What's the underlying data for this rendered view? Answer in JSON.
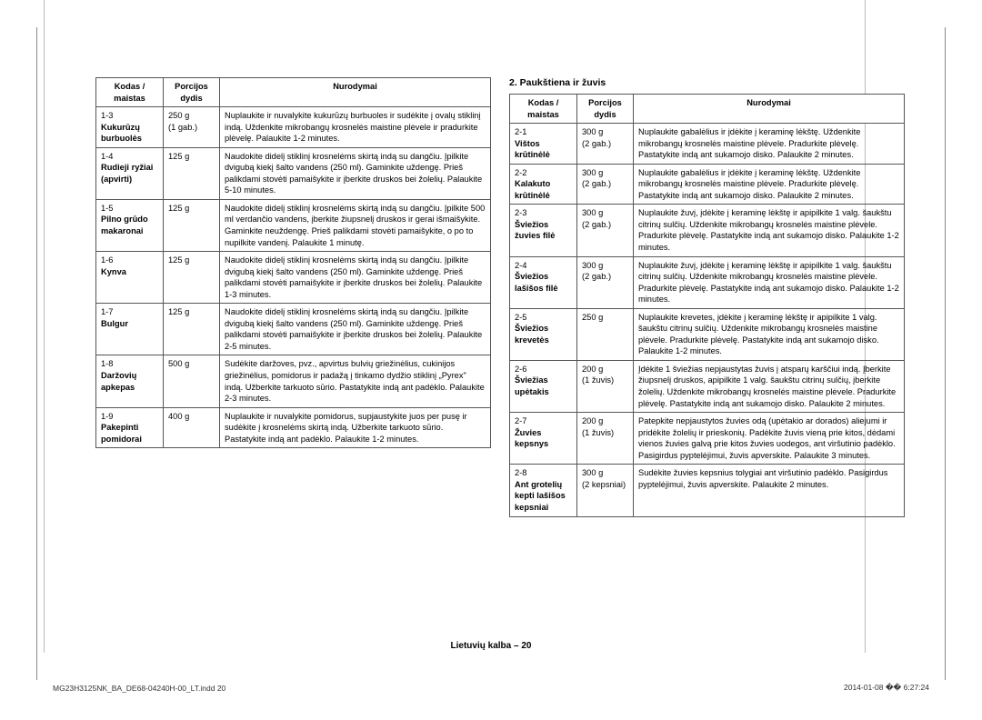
{
  "table1": {
    "headers": [
      "Kodas / maistas",
      "Porcijos dydis",
      "Nurodymai"
    ],
    "rows": [
      {
        "code": "1-3",
        "name": "Kukurūzų burbuolės",
        "portion": "250 g\n(1 gab.)",
        "inst": "Nuplaukite ir nuvalykite kukurūzų burbuoles ir sudėkite į ovalų stiklinį indą. Uždenkite mikrobangų krosnelės maistine plėvele ir pradurkite plėvelę. Palaukite 1-2 minutes."
      },
      {
        "code": "1-4",
        "name": "Rudieji ryžiai (apvirti)",
        "portion": "125 g",
        "inst": "Naudokite didelį stiklinį krosnelėms skirtą indą su dangčiu. Įpilkite dvigubą kiekį šalto vandens (250 ml). Gaminkite uždengę. Prieš palikdami stovėti pamaišykite ir įberkite druskos bei žolelių. Palaukite 5-10 minutes."
      },
      {
        "code": "1-5",
        "name": "Pilno grūdo makaronai",
        "portion": "125 g",
        "inst": "Naudokite didelį stiklinį krosnelėms skirtą indą su dangčiu. Įpilkite 500 ml verdančio vandens, įberkite žiupsnelį druskos ir gerai išmaišykite. Gaminkite neuždengę. Prieš palikdami stovėti pamaišykite, o po to nupilkite vandenį. Palaukite 1 minutę."
      },
      {
        "code": "1-6",
        "name": "Kynva",
        "portion": "125 g",
        "inst": "Naudokite didelį stiklinį krosnelėms skirtą indą su dangčiu. Įpilkite dvigubą kiekį šalto vandens (250 ml). Gaminkite uždengę. Prieš palikdami stovėti pamaišykite ir įberkite druskos bei žolelių. Palaukite 1-3 minutes."
      },
      {
        "code": "1-7",
        "name": "Bulgur",
        "portion": "125 g",
        "inst": "Naudokite didelį stiklinį krosnelėms skirtą indą su dangčiu. Įpilkite dvigubą kiekį šalto vandens (250 ml). Gaminkite uždengę. Prieš palikdami stovėti pamaišykite ir įberkite druskos bei žolelių. Palaukite 2-5 minutes."
      },
      {
        "code": "1-8",
        "name": "Daržovių apkepas",
        "portion": "500 g",
        "inst": "Sudėkite daržoves, pvz., apvirtus bulvių griežinėlius, cukinijos griežinėlius, pomidorus ir padažą į tinkamo dydžio stiklinį „Pyrex\" indą. Užberkite tarkuoto sūrio. Pastatykite indą ant padėklo. Palaukite 2-3 minutes."
      },
      {
        "code": "1-9",
        "name": "Pakepinti pomidorai",
        "portion": "400 g",
        "inst": "Nuplaukite ir nuvalykite pomidorus, supjaustykite juos per pusę ir sudėkite į krosnelėms skirtą indą. Užberkite tarkuoto sūrio. Pastatykite indą ant padėklo. Palaukite 1-2 minutes."
      }
    ]
  },
  "section2_title": "2. Paukštiena ir žuvis",
  "table2": {
    "headers": [
      "Kodas / maistas",
      "Porcijos dydis",
      "Nurodymai"
    ],
    "rows": [
      {
        "code": "2-1",
        "name": "Vištos krūtinėlė",
        "portion": "300 g\n(2 gab.)",
        "inst": "Nuplaukite gabalėlius ir įdėkite į keraminę lėkštę. Uždenkite mikrobangų krosnelės maistine plėvele. Pradurkite plėvelę. Pastatykite indą ant sukamojo disko. Palaukite 2 minutes."
      },
      {
        "code": "2-2",
        "name": "Kalakuto krūtinėlė",
        "portion": "300 g\n(2 gab.)",
        "inst": "Nuplaukite gabalėlius ir įdėkite į keraminę lėkštę. Uždenkite mikrobangų krosnelės maistine plėvele. Pradurkite plėvelę. Pastatykite indą ant sukamojo disko. Palaukite 2 minutes."
      },
      {
        "code": "2-3",
        "name": "Šviežios žuvies filė",
        "portion": "300 g\n(2 gab.)",
        "inst": "Nuplaukite žuvį, įdėkite į keraminę lėkštę ir apipilkite 1 valg. šaukštu citrinų sulčių. Uždenkite mikrobangų krosnelės maistine plėvele. Pradurkite plėvelę. Pastatykite indą ant sukamojo disko. Palaukite 1-2 minutes."
      },
      {
        "code": "2-4",
        "name": "Šviežios lašišos filė",
        "portion": "300 g\n(2 gab.)",
        "inst": "Nuplaukite žuvį, įdėkite į keraminę lėkštę ir apipilkite 1 valg. šaukštu citrinų sulčių. Uždenkite mikrobangų krosnelės maistine plėvele. Pradurkite plėvelę. Pastatykite indą ant sukamojo disko. Palaukite 1-2 minutes."
      },
      {
        "code": "2-5",
        "name": "Šviežios krevetės",
        "portion": "250 g",
        "inst": "Nuplaukite krevetes, įdėkite į keraminę lėkštę ir apipilkite 1 valg. šaukštu citrinų sulčių. Uždenkite mikrobangų krosnelės maistine plėvele. Pradurkite plėvelę. Pastatykite indą ant sukamojo disko. Palaukite 1-2 minutes."
      },
      {
        "code": "2-6",
        "name": "Šviežias upėtakis",
        "portion": "200 g\n(1 žuvis)",
        "inst": "Įdėkite 1 šviežias nepjaustytas žuvis į atsparų karščiui indą. Įberkite žiupsnelį druskos, apipilkite 1 valg. šaukštu citrinų sulčių, įberkite žolelių. Uždenkite mikrobangų krosnelės maistine plėvele. Pradurkite plėvelę. Pastatykite indą ant sukamojo disko. Palaukite 2 minutes."
      },
      {
        "code": "2-7",
        "name": "Žuvies kepsnys",
        "portion": "200 g\n(1 žuvis)",
        "inst": "Patepkite nepjaustytos žuvies odą (upėtakio ar dorados) aliejumi ir pridėkite žolelių ir prieskonių. Padėkite žuvis vieną prie kitos, dėdami vienos žuvies galvą prie kitos žuvies uodegos, ant viršutinio padėklo. Pasigirdus pyptelėjimui, žuvis apverskite. Palaukite 3 minutes."
      },
      {
        "code": "2-8",
        "name": "Ant grotelių kepti lašišos kepsniai",
        "portion": "300 g\n(2 kepsniai)",
        "inst": "Sudėkite žuvies kepsnius tolygiai ant viršutinio padėklo. Pasigirdus pyptelėjimui, žuvis apverskite. Palaukite 2 minutes."
      }
    ]
  },
  "page_number_label": "Lietuvių kalba – 20",
  "footer_left": "MG23H3125NK_BA_DE68-04240H-00_LT.indd   20",
  "footer_right": "2014-01-08   �� 6:27:24"
}
